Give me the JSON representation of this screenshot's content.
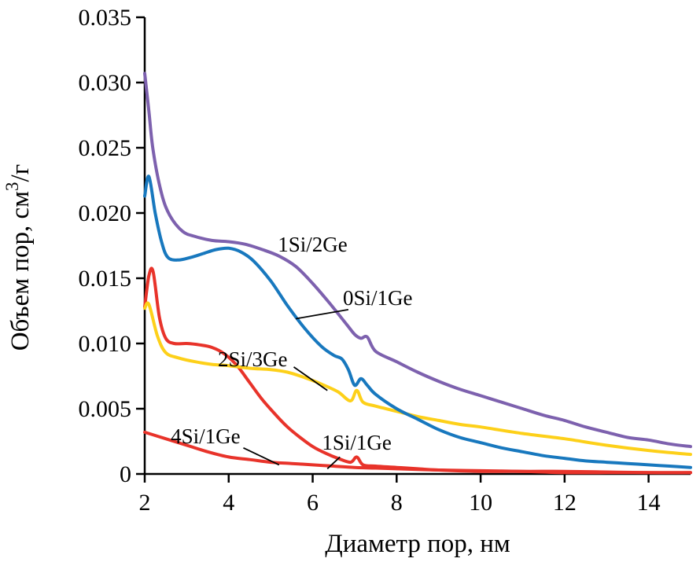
{
  "chart_data": {
    "type": "line",
    "title": "",
    "xlabel": "Диаметр пор, нм",
    "ylabel": "Объем пор, см³/г",
    "ylabel_parts": {
      "before": "Объем пор, см",
      "sup": "3",
      "after": "/г"
    },
    "xlim": [
      2,
      15
    ],
    "ylim": [
      0,
      0.035
    ],
    "x_ticks": [
      2,
      4,
      6,
      8,
      10,
      12,
      14
    ],
    "y_ticks": [
      0,
      0.005,
      0.01,
      0.015,
      0.02,
      0.025,
      0.03,
      0.035
    ],
    "y_tick_labels": [
      "0",
      "0.005",
      "0.010",
      "0.015",
      "0.020",
      "0.025",
      "0.030",
      "0.035"
    ],
    "grid": false,
    "legend": "inline-labels",
    "axis_color": "#000000",
    "series": [
      {
        "name": "1Si/2Ge",
        "color": "#7d61ae",
        "x": [
          2.0,
          2.1,
          2.2,
          2.4,
          2.6,
          2.9,
          3.2,
          3.6,
          4.0,
          4.4,
          4.8,
          5.2,
          5.6,
          6.0,
          6.4,
          6.8,
          7.0,
          7.15,
          7.3,
          7.5,
          8.0,
          8.5,
          9.0,
          9.5,
          10,
          10.5,
          11,
          11.5,
          12,
          12.5,
          13,
          13.5,
          14,
          14.5,
          15
        ],
        "y": [
          0.0307,
          0.0278,
          0.0248,
          0.0215,
          0.0198,
          0.0186,
          0.0182,
          0.0179,
          0.0178,
          0.0176,
          0.0172,
          0.0167,
          0.0159,
          0.0146,
          0.0131,
          0.0115,
          0.0107,
          0.0104,
          0.0105,
          0.0094,
          0.0086,
          0.0078,
          0.0071,
          0.0065,
          0.006,
          0.0055,
          0.005,
          0.0045,
          0.0041,
          0.0036,
          0.0032,
          0.0028,
          0.0026,
          0.0023,
          0.0021
        ]
      },
      {
        "name": "0Si/1Ge",
        "color": "#1878be",
        "x": [
          2.0,
          2.1,
          2.25,
          2.4,
          2.55,
          2.8,
          3.1,
          3.4,
          3.7,
          4.0,
          4.3,
          4.6,
          5.0,
          5.4,
          5.8,
          6.2,
          6.5,
          6.7,
          6.85,
          7.0,
          7.15,
          7.3,
          7.5,
          8.0,
          8.5,
          9.0,
          9.5,
          10,
          10.5,
          11,
          11.5,
          12,
          12.5,
          13,
          13.5,
          14,
          14.5,
          15
        ],
        "y": [
          0.0213,
          0.0228,
          0.02,
          0.0178,
          0.0166,
          0.0164,
          0.0166,
          0.0169,
          0.0172,
          0.0173,
          0.017,
          0.0163,
          0.0148,
          0.0129,
          0.0112,
          0.0098,
          0.0091,
          0.0088,
          0.008,
          0.0068,
          0.0073,
          0.0068,
          0.0061,
          0.005,
          0.0042,
          0.0034,
          0.0028,
          0.0024,
          0.002,
          0.0017,
          0.0014,
          0.0012,
          0.001,
          0.0009,
          0.0008,
          0.0007,
          0.0006,
          0.0005
        ]
      },
      {
        "name": "2Si/3Ge",
        "color": "#fdd019",
        "x": [
          2.0,
          2.1,
          2.3,
          2.5,
          2.8,
          3.2,
          3.6,
          4.0,
          4.5,
          5.0,
          5.4,
          5.8,
          6.2,
          6.6,
          6.9,
          7.05,
          7.2,
          7.5,
          8.0,
          8.5,
          9.0,
          9.5,
          10,
          11,
          12,
          13,
          14,
          15
        ],
        "y": [
          0.0127,
          0.013,
          0.0106,
          0.0093,
          0.0089,
          0.0086,
          0.0084,
          0.0083,
          0.0081,
          0.008,
          0.0078,
          0.0074,
          0.0069,
          0.0063,
          0.0056,
          0.0064,
          0.0055,
          0.0052,
          0.0048,
          0.0044,
          0.0041,
          0.0038,
          0.0036,
          0.0031,
          0.0027,
          0.0022,
          0.0018,
          0.0015
        ]
      },
      {
        "name": "1Si/1Ge",
        "color": "#e8332a",
        "x": [
          2.0,
          2.1,
          2.2,
          2.35,
          2.5,
          2.7,
          3.0,
          3.3,
          3.6,
          3.9,
          4.2,
          4.5,
          4.8,
          5.1,
          5.4,
          5.7,
          6.0,
          6.3,
          6.6,
          6.9,
          7.05,
          7.2,
          7.5,
          8.0,
          8.5,
          9.0,
          10,
          11,
          12,
          13,
          14,
          15
        ],
        "y": [
          0.0128,
          0.0152,
          0.0155,
          0.012,
          0.0104,
          0.01,
          0.01,
          0.0099,
          0.0097,
          0.0092,
          0.0083,
          0.007,
          0.0057,
          0.0046,
          0.0036,
          0.0028,
          0.0021,
          0.0016,
          0.0012,
          0.0009,
          0.0013,
          0.0007,
          0.0006,
          0.0005,
          0.0004,
          0.0003,
          0.0002,
          0.0002,
          0.0001,
          0.0001,
          0.0001,
          0.0001
        ]
      },
      {
        "name": "4Si/1Ge",
        "color": "#e8332a",
        "x": [
          2.0,
          2.5,
          3.0,
          3.5,
          4.0,
          4.5,
          5.0,
          5.5,
          6.0,
          6.5,
          7.0,
          7.5,
          8.0,
          9.0,
          10,
          11,
          12,
          13,
          14,
          15
        ],
        "y": [
          0.0032,
          0.0027,
          0.0022,
          0.0017,
          0.0013,
          0.0011,
          0.0009,
          0.0008,
          0.0007,
          0.0006,
          0.0005,
          0.00045,
          0.0004,
          0.0003,
          0.00025,
          0.0002,
          0.0002,
          0.00015,
          0.0001,
          0.0001
        ]
      }
    ],
    "annotations": [
      {
        "text": "1Si/2Ge",
        "x": 6.0,
        "y": 0.0176,
        "leader": null
      },
      {
        "text": "0Si/1Ge",
        "x": 7.55,
        "y": 0.0135,
        "leader": {
          "x1": 6.85,
          "y1": 0.0126,
          "x2": 5.6,
          "y2": 0.0119
        }
      },
      {
        "text": "2Si/3Ge",
        "x": 4.57,
        "y": 0.0088,
        "leader": {
          "x1": 5.55,
          "y1": 0.0082,
          "x2": 6.35,
          "y2": 0.0064
        }
      },
      {
        "text": "4Si/1Ge",
        "x": 3.45,
        "y": 0.0029,
        "leader": {
          "x1": 4.35,
          "y1": 0.002,
          "x2": 5.2,
          "y2": 0.0007
        }
      },
      {
        "text": "1Si/1Ge",
        "x": 7.05,
        "y": 0.0024,
        "leader": {
          "x1": 6.65,
          "y1": 0.0013,
          "x2": 6.35,
          "y2": 0.0004
        }
      }
    ]
  }
}
